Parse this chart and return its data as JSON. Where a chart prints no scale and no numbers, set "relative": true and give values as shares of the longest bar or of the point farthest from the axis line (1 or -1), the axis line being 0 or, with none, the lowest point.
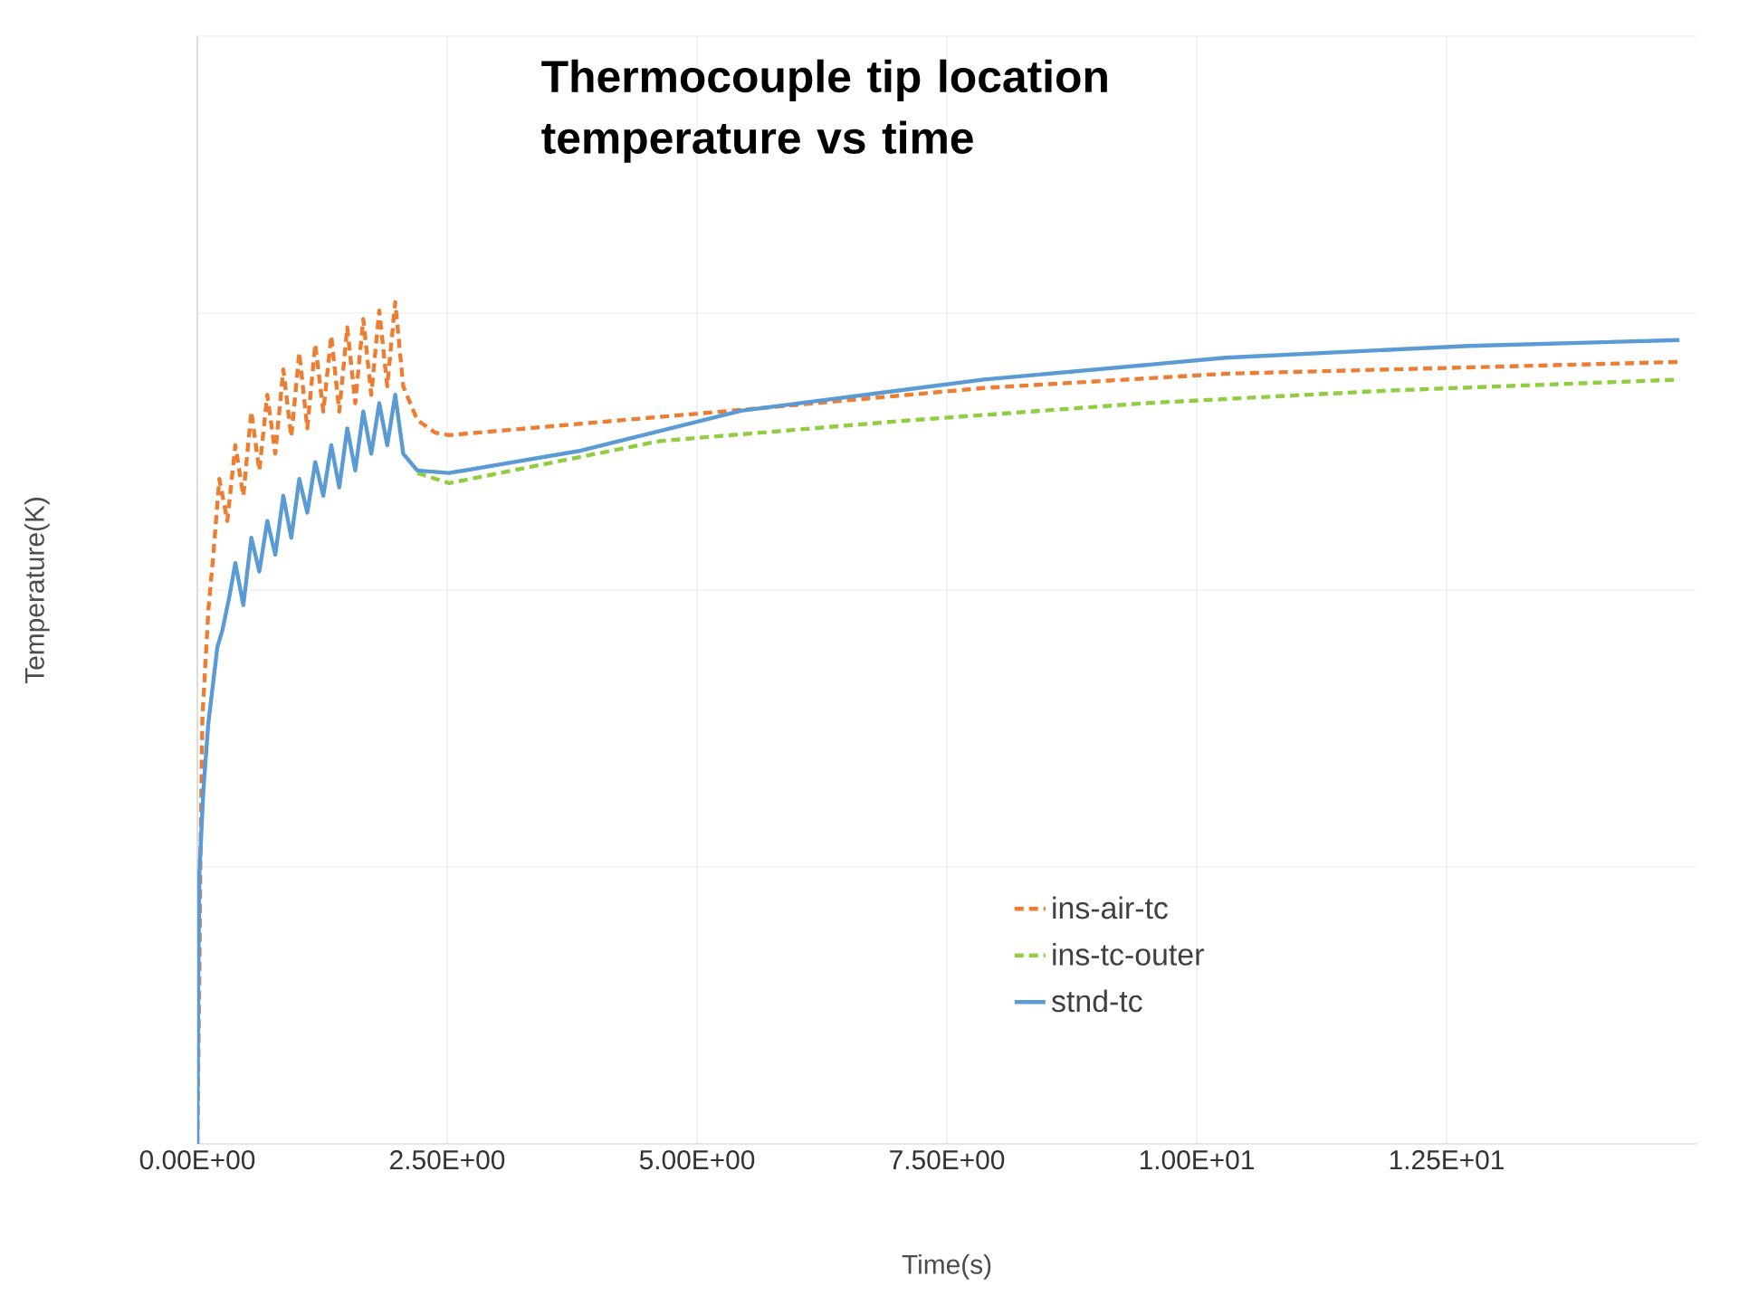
{
  "chart_data": {
    "type": "line",
    "title": "Thermocouple tip location temperature vs time",
    "xlabel": "Time(s)",
    "ylabel": "Temperature(K)",
    "relative": true,
    "xlim": [
      0,
      15
    ],
    "xticks": [
      {
        "value": 0,
        "label": "0.00E+00"
      },
      {
        "value": 2.5,
        "label": "2.50E+00"
      },
      {
        "value": 5,
        "label": "5.00E+00"
      },
      {
        "value": 7.5,
        "label": "7.50E+00"
      },
      {
        "value": 10,
        "label": "1.00E+01"
      },
      {
        "value": 12.5,
        "label": "1.25E+01"
      }
    ],
    "grid": true,
    "legend": "bottom right",
    "marker": "none",
    "series": [
      {
        "name": "ins-air-tc",
        "color": "#ed7d31",
        "line_style": "dashed",
        "x": [
          0,
          0.02,
          0.03,
          0.05,
          0.11,
          0.16,
          0.22,
          0.3,
          0.38,
          0.46,
          0.54,
          0.62,
          0.7,
          0.78,
          0.86,
          0.94,
          1.02,
          1.1,
          1.18,
          1.26,
          1.34,
          1.42,
          1.5,
          1.58,
          1.66,
          1.74,
          1.82,
          1.9,
          1.98,
          2.06,
          2.2,
          2.38,
          2.52,
          5.44,
          7.87,
          10.29,
          14.83
        ],
        "values": [
          0,
          0.2,
          0.33,
          0.505,
          0.634,
          0.7,
          0.79,
          0.74,
          0.83,
          0.77,
          0.87,
          0.8,
          0.89,
          0.82,
          0.92,
          0.84,
          0.94,
          0.85,
          0.95,
          0.87,
          0.96,
          0.87,
          0.97,
          0.88,
          0.98,
          0.89,
          0.99,
          0.9,
          1.0,
          0.9,
          0.86,
          0.845,
          0.842,
          0.872,
          0.898,
          0.915,
          0.929
        ]
      },
      {
        "name": "ins-tc-outer",
        "color": "#8fce3e",
        "line_style": "dashed",
        "x": [
          2.2,
          2.52,
          4.63,
          7.06,
          9.49,
          11.92,
          14.83
        ],
        "values": [
          0.797,
          0.785,
          0.835,
          0.859,
          0.88,
          0.895,
          0.908
        ]
      },
      {
        "name": "stnd-tc",
        "color": "#5b9bd5",
        "line_style": "solid",
        "x": [
          0,
          0.01,
          0.02,
          0.06,
          0.11,
          0.2,
          0.25,
          0.32,
          0.38,
          0.46,
          0.54,
          0.62,
          0.7,
          0.78,
          0.86,
          0.94,
          1.02,
          1.1,
          1.18,
          1.26,
          1.34,
          1.42,
          1.5,
          1.58,
          1.66,
          1.74,
          1.82,
          1.9,
          1.98,
          2.06,
          2.2,
          2.52,
          3.81,
          5.44,
          7.87,
          10.29,
          12.72,
          14.83
        ],
        "values": [
          0,
          0.2,
          0.32,
          0.42,
          0.5,
          0.59,
          0.61,
          0.65,
          0.69,
          0.64,
          0.72,
          0.68,
          0.74,
          0.7,
          0.77,
          0.72,
          0.79,
          0.75,
          0.81,
          0.77,
          0.83,
          0.78,
          0.85,
          0.8,
          0.87,
          0.82,
          0.88,
          0.83,
          0.89,
          0.82,
          0.8,
          0.797,
          0.823,
          0.871,
          0.908,
          0.934,
          0.948,
          0.955
        ]
      }
    ]
  }
}
